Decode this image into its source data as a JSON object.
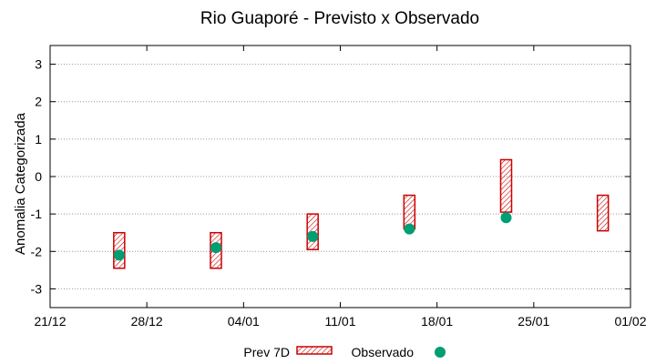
{
  "chart_data": {
    "type": "range-bar-scatter",
    "title": "Rio Guaporé - Previsto x Observado",
    "xlabel": "",
    "ylabel": "Anomalia Categorizada",
    "x_ticks": [
      "21/12",
      "28/12",
      "04/01",
      "11/01",
      "18/01",
      "25/01",
      "01/02"
    ],
    "xlim": [
      "21/12",
      "01/02"
    ],
    "y_ticks": [
      -3,
      -2,
      -1,
      0,
      1,
      2,
      3
    ],
    "ylim": [
      -3.5,
      3.5
    ],
    "grid": "horizontal-dotted",
    "legend_position": "bottom",
    "series": [
      {
        "name": "Prev 7D",
        "type": "range-bar",
        "color": "#cc0000",
        "pattern": "diagonal-hatch",
        "points": [
          {
            "x": "26/12",
            "low": -2.45,
            "high": -1.5
          },
          {
            "x": "02/01",
            "low": -2.45,
            "high": -1.5
          },
          {
            "x": "09/01",
            "low": -1.95,
            "high": -1.0
          },
          {
            "x": "16/01",
            "low": -1.4,
            "high": -0.5
          },
          {
            "x": "23/01",
            "low": -0.95,
            "high": 0.45
          },
          {
            "x": "30/01",
            "low": -1.45,
            "high": -0.5
          }
        ]
      },
      {
        "name": "Observado",
        "type": "scatter",
        "color": "#009e73",
        "points": [
          {
            "x": "26/12",
            "y": -2.1
          },
          {
            "x": "02/01",
            "y": -1.9
          },
          {
            "x": "09/01",
            "y": -1.6
          },
          {
            "x": "16/01",
            "y": -1.4
          },
          {
            "x": "23/01",
            "y": -1.1
          }
        ]
      }
    ]
  }
}
